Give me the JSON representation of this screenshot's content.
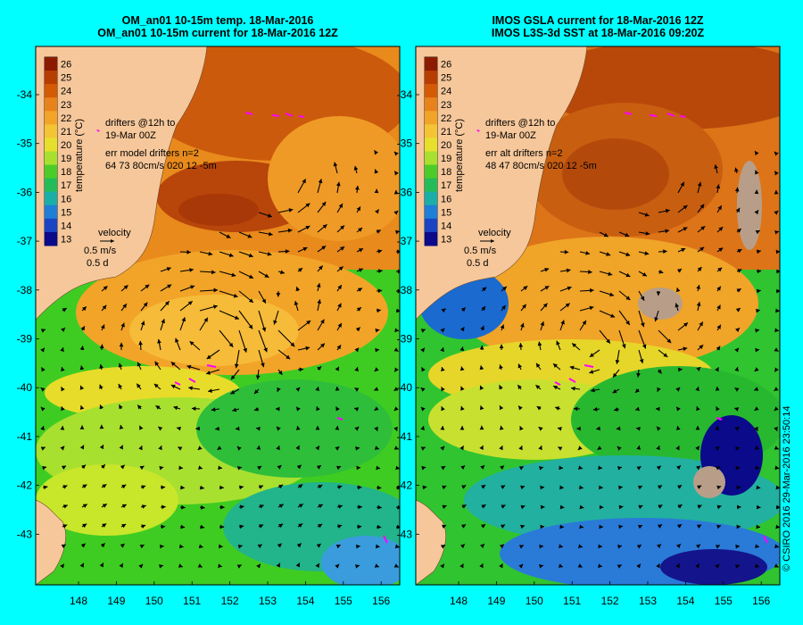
{
  "panels": [
    {
      "id": "left",
      "title_line1": "OM_an01 10-15m temp. 18-Mar-2016",
      "title_line2": "OM_an01 10-15m current for 18-Mar-2016 12Z",
      "drifters_line1": "drifters @12h to",
      "drifters_line2": "19-Mar 00Z",
      "err_line1": "err model drifters n=2",
      "err_line2": "64 73 80cm/s 020 12 -5m"
    },
    {
      "id": "right",
      "title_line1": "IMOS GSLA current for 18-Mar-2016 12Z",
      "title_line2": "IMOS L3S-3d SST at 18-Mar-2016 09:20Z",
      "drifters_line1": "drifters @12h to",
      "drifters_line2": "19-Mar 00Z",
      "err_line1": "err alt drifters n=2",
      "err_line2": "48 47 80cm/s 020 12 -5m"
    }
  ],
  "colorbar": {
    "label": "temperature (°C)",
    "ticks": [
      "26",
      "25",
      "24",
      "23",
      "22",
      "21",
      "20",
      "19",
      "18",
      "17",
      "16",
      "15",
      "14",
      "13"
    ]
  },
  "velocity_legend": {
    "title": "velocity",
    "speed": "0.5 m/s",
    "duration": "0.5 d"
  },
  "axes": {
    "lat_labels": [
      "-34",
      "-35",
      "-36",
      "-37",
      "-38",
      "-39",
      "-40",
      "-41",
      "-42",
      "-43"
    ],
    "lon_labels": [
      "148",
      "149",
      "150",
      "151",
      "152",
      "153",
      "154",
      "155",
      "156"
    ]
  },
  "copyright": "© CSIRO 2016  29-Mar-2016 23:50:14",
  "colors": {
    "background": "#00ffff",
    "land": "#f6c79a",
    "drifter": "#ff00ff"
  },
  "icons": [
    "velocity-arrow-icon",
    "drifter-track-icon",
    "current-vector-icon"
  ]
}
